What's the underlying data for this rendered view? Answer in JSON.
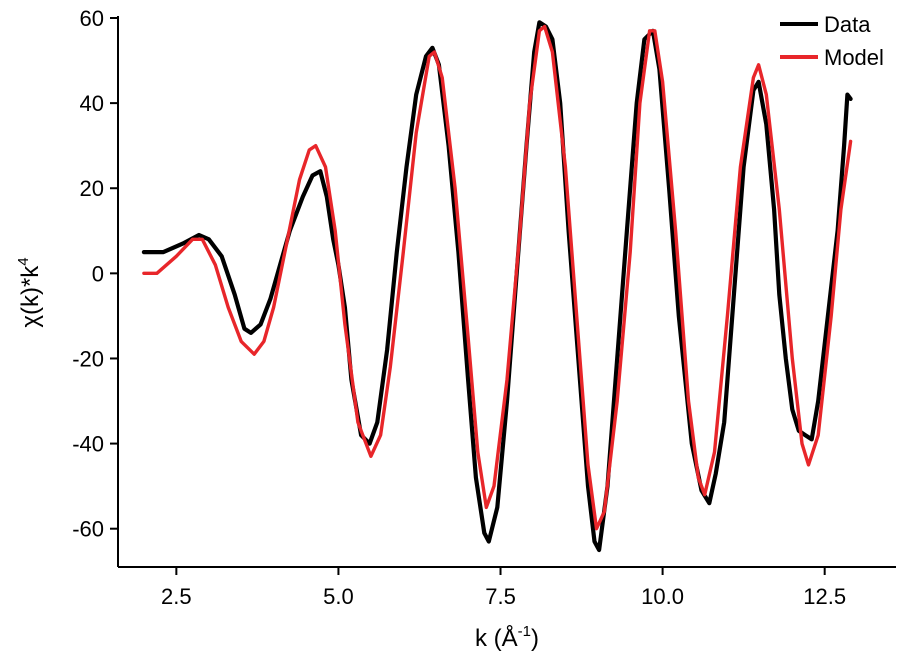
{
  "chart_data": {
    "type": "line",
    "xlabel": {
      "base": "k (Å",
      "sup": "-1",
      "close": ")"
    },
    "ylabel": {
      "base": "χ(k)*k",
      "sup": "4"
    },
    "xlim": [
      1.6,
      13.6
    ],
    "ylim": [
      -69,
      60
    ],
    "xticks": [
      2.5,
      5.0,
      7.5,
      10.0,
      12.5
    ],
    "xtick_labels": [
      "2.5",
      "5.0",
      "7.5",
      "10.0",
      "12.5"
    ],
    "yticks": [
      60,
      40,
      20,
      0,
      -20,
      -40,
      -60
    ],
    "ytick_labels": [
      "60",
      "40",
      "20",
      "0",
      "-20",
      "-40",
      "-60"
    ],
    "legend_position": "top-right",
    "series": [
      {
        "name": "Data",
        "color": "#000000",
        "points": [
          [
            2.0,
            5
          ],
          [
            2.3,
            5
          ],
          [
            2.6,
            7
          ],
          [
            2.85,
            9
          ],
          [
            3.0,
            8
          ],
          [
            3.2,
            4
          ],
          [
            3.4,
            -5
          ],
          [
            3.55,
            -13
          ],
          [
            3.65,
            -14
          ],
          [
            3.8,
            -12
          ],
          [
            3.95,
            -6
          ],
          [
            4.1,
            2
          ],
          [
            4.25,
            10
          ],
          [
            4.45,
            18
          ],
          [
            4.6,
            23
          ],
          [
            4.72,
            24
          ],
          [
            4.82,
            18
          ],
          [
            4.92,
            8
          ],
          [
            5.0,
            2
          ],
          [
            5.1,
            -8
          ],
          [
            5.2,
            -25
          ],
          [
            5.35,
            -38
          ],
          [
            5.48,
            -40
          ],
          [
            5.6,
            -35
          ],
          [
            5.75,
            -18
          ],
          [
            5.9,
            5
          ],
          [
            6.05,
            25
          ],
          [
            6.2,
            42
          ],
          [
            6.35,
            51
          ],
          [
            6.45,
            53
          ],
          [
            6.55,
            49
          ],
          [
            6.7,
            30
          ],
          [
            6.85,
            5
          ],
          [
            7.0,
            -25
          ],
          [
            7.12,
            -48
          ],
          [
            7.25,
            -61
          ],
          [
            7.32,
            -63
          ],
          [
            7.45,
            -55
          ],
          [
            7.6,
            -30
          ],
          [
            7.75,
            0
          ],
          [
            7.9,
            30
          ],
          [
            8.02,
            52
          ],
          [
            8.1,
            59
          ],
          [
            8.2,
            58
          ],
          [
            8.3,
            55
          ],
          [
            8.42,
            40
          ],
          [
            8.55,
            10
          ],
          [
            8.7,
            -20
          ],
          [
            8.85,
            -50
          ],
          [
            8.95,
            -63
          ],
          [
            9.02,
            -65
          ],
          [
            9.15,
            -50
          ],
          [
            9.3,
            -20
          ],
          [
            9.45,
            10
          ],
          [
            9.6,
            40
          ],
          [
            9.72,
            55
          ],
          [
            9.85,
            57
          ],
          [
            9.95,
            48
          ],
          [
            10.1,
            20
          ],
          [
            10.25,
            -10
          ],
          [
            10.45,
            -40
          ],
          [
            10.6,
            -51
          ],
          [
            10.72,
            -54
          ],
          [
            10.82,
            -47
          ],
          [
            10.95,
            -35
          ],
          [
            11.1,
            -5
          ],
          [
            11.25,
            25
          ],
          [
            11.4,
            43
          ],
          [
            11.48,
            45
          ],
          [
            11.6,
            35
          ],
          [
            11.72,
            15
          ],
          [
            11.8,
            -5
          ],
          [
            11.9,
            -20
          ],
          [
            12.0,
            -32
          ],
          [
            12.1,
            -37
          ],
          [
            12.2,
            -38
          ],
          [
            12.3,
            -39
          ],
          [
            12.4,
            -30
          ],
          [
            12.55,
            -10
          ],
          [
            12.7,
            10
          ],
          [
            12.8,
            30
          ],
          [
            12.85,
            42
          ],
          [
            12.9,
            41
          ]
        ]
      },
      {
        "name": "Model",
        "color": "#e8262a",
        "points": [
          [
            2.0,
            0
          ],
          [
            2.2,
            0
          ],
          [
            2.5,
            4
          ],
          [
            2.75,
            8
          ],
          [
            2.9,
            8
          ],
          [
            3.1,
            2
          ],
          [
            3.3,
            -8
          ],
          [
            3.5,
            -16
          ],
          [
            3.7,
            -19
          ],
          [
            3.85,
            -16
          ],
          [
            4.0,
            -8
          ],
          [
            4.2,
            7
          ],
          [
            4.4,
            22
          ],
          [
            4.55,
            29
          ],
          [
            4.65,
            30
          ],
          [
            4.8,
            25
          ],
          [
            4.95,
            10
          ],
          [
            5.1,
            -12
          ],
          [
            5.3,
            -35
          ],
          [
            5.5,
            -43
          ],
          [
            5.65,
            -38
          ],
          [
            5.8,
            -22
          ],
          [
            6.0,
            5
          ],
          [
            6.2,
            33
          ],
          [
            6.4,
            51
          ],
          [
            6.48,
            52
          ],
          [
            6.6,
            46
          ],
          [
            6.8,
            20
          ],
          [
            7.0,
            -15
          ],
          [
            7.15,
            -42
          ],
          [
            7.28,
            -55
          ],
          [
            7.4,
            -50
          ],
          [
            7.6,
            -25
          ],
          [
            7.8,
            10
          ],
          [
            7.95,
            40
          ],
          [
            8.1,
            57
          ],
          [
            8.18,
            58
          ],
          [
            8.3,
            52
          ],
          [
            8.5,
            25
          ],
          [
            8.7,
            -15
          ],
          [
            8.85,
            -45
          ],
          [
            8.98,
            -60
          ],
          [
            9.1,
            -56
          ],
          [
            9.3,
            -30
          ],
          [
            9.5,
            5
          ],
          [
            9.65,
            40
          ],
          [
            9.8,
            57
          ],
          [
            9.88,
            57
          ],
          [
            10.0,
            45
          ],
          [
            10.2,
            10
          ],
          [
            10.4,
            -30
          ],
          [
            10.55,
            -48
          ],
          [
            10.65,
            -52
          ],
          [
            10.8,
            -42
          ],
          [
            11.0,
            -10
          ],
          [
            11.2,
            25
          ],
          [
            11.4,
            46
          ],
          [
            11.48,
            49
          ],
          [
            11.6,
            42
          ],
          [
            11.8,
            15
          ],
          [
            12.0,
            -20
          ],
          [
            12.15,
            -40
          ],
          [
            12.25,
            -45
          ],
          [
            12.4,
            -38
          ],
          [
            12.6,
            -10
          ],
          [
            12.75,
            15
          ],
          [
            12.9,
            31
          ]
        ]
      }
    ]
  }
}
